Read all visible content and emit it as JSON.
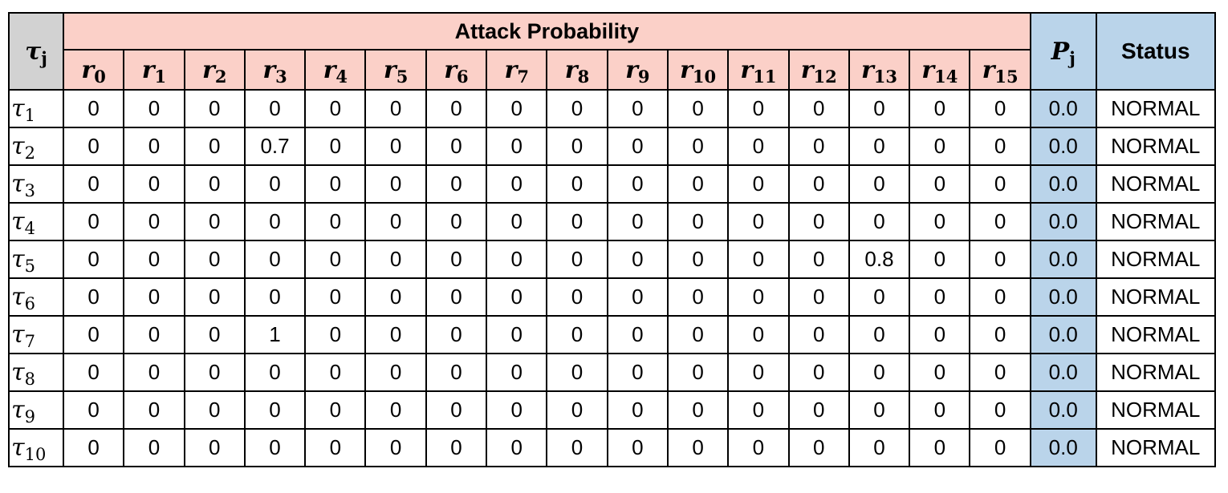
{
  "table": {
    "title": "Attack Probability",
    "task_header": {
      "symbol": "τ",
      "sub": "j"
    },
    "p_header": {
      "symbol": "P",
      "sub": "j"
    },
    "status_header": "Status",
    "resource_symbol": "r",
    "resources": [
      "0",
      "1",
      "2",
      "3",
      "4",
      "5",
      "6",
      "7",
      "8",
      "9",
      "10",
      "11",
      "12",
      "13",
      "14",
      "15"
    ],
    "task_symbol": "τ",
    "rows": [
      {
        "task": "1",
        "values": [
          "0",
          "0",
          "0",
          "0",
          "0",
          "0",
          "0",
          "0",
          "0",
          "0",
          "0",
          "0",
          "0",
          "0",
          "0",
          "0"
        ],
        "p": "0.0",
        "status": "NORMAL"
      },
      {
        "task": "2",
        "values": [
          "0",
          "0",
          "0",
          "0.7",
          "0",
          "0",
          "0",
          "0",
          "0",
          "0",
          "0",
          "0",
          "0",
          "0",
          "0",
          "0"
        ],
        "p": "0.0",
        "status": "NORMAL"
      },
      {
        "task": "3",
        "values": [
          "0",
          "0",
          "0",
          "0",
          "0",
          "0",
          "0",
          "0",
          "0",
          "0",
          "0",
          "0",
          "0",
          "0",
          "0",
          "0"
        ],
        "p": "0.0",
        "status": "NORMAL"
      },
      {
        "task": "4",
        "values": [
          "0",
          "0",
          "0",
          "0",
          "0",
          "0",
          "0",
          "0",
          "0",
          "0",
          "0",
          "0",
          "0",
          "0",
          "0",
          "0"
        ],
        "p": "0.0",
        "status": "NORMAL"
      },
      {
        "task": "5",
        "values": [
          "0",
          "0",
          "0",
          "0",
          "0",
          "0",
          "0",
          "0",
          "0",
          "0",
          "0",
          "0",
          "0",
          "0.8",
          "0",
          "0"
        ],
        "p": "0.0",
        "status": "NORMAL"
      },
      {
        "task": "6",
        "values": [
          "0",
          "0",
          "0",
          "0",
          "0",
          "0",
          "0",
          "0",
          "0",
          "0",
          "0",
          "0",
          "0",
          "0",
          "0",
          "0"
        ],
        "p": "0.0",
        "status": "NORMAL"
      },
      {
        "task": "7",
        "values": [
          "0",
          "0",
          "0",
          "1",
          "0",
          "0",
          "0",
          "0",
          "0",
          "0",
          "0",
          "0",
          "0",
          "0",
          "0",
          "0"
        ],
        "p": "0.0",
        "status": "NORMAL"
      },
      {
        "task": "8",
        "values": [
          "0",
          "0",
          "0",
          "0",
          "0",
          "0",
          "0",
          "0",
          "0",
          "0",
          "0",
          "0",
          "0",
          "0",
          "0",
          "0"
        ],
        "p": "0.0",
        "status": "NORMAL"
      },
      {
        "task": "9",
        "values": [
          "0",
          "0",
          "0",
          "0",
          "0",
          "0",
          "0",
          "0",
          "0",
          "0",
          "0",
          "0",
          "0",
          "0",
          "0",
          "0"
        ],
        "p": "0.0",
        "status": "NORMAL"
      },
      {
        "task": "10",
        "values": [
          "0",
          "0",
          "0",
          "0",
          "0",
          "0",
          "0",
          "0",
          "0",
          "0",
          "0",
          "0",
          "0",
          "0",
          "0",
          "0"
        ],
        "p": "0.0",
        "status": "NORMAL"
      }
    ]
  },
  "colors": {
    "task_header_bg": "#d2d2d2",
    "attack_header_bg": "#fbd0c8",
    "p_column_bg": "#bad4ea",
    "status_header_bg": "#bad4ea"
  }
}
